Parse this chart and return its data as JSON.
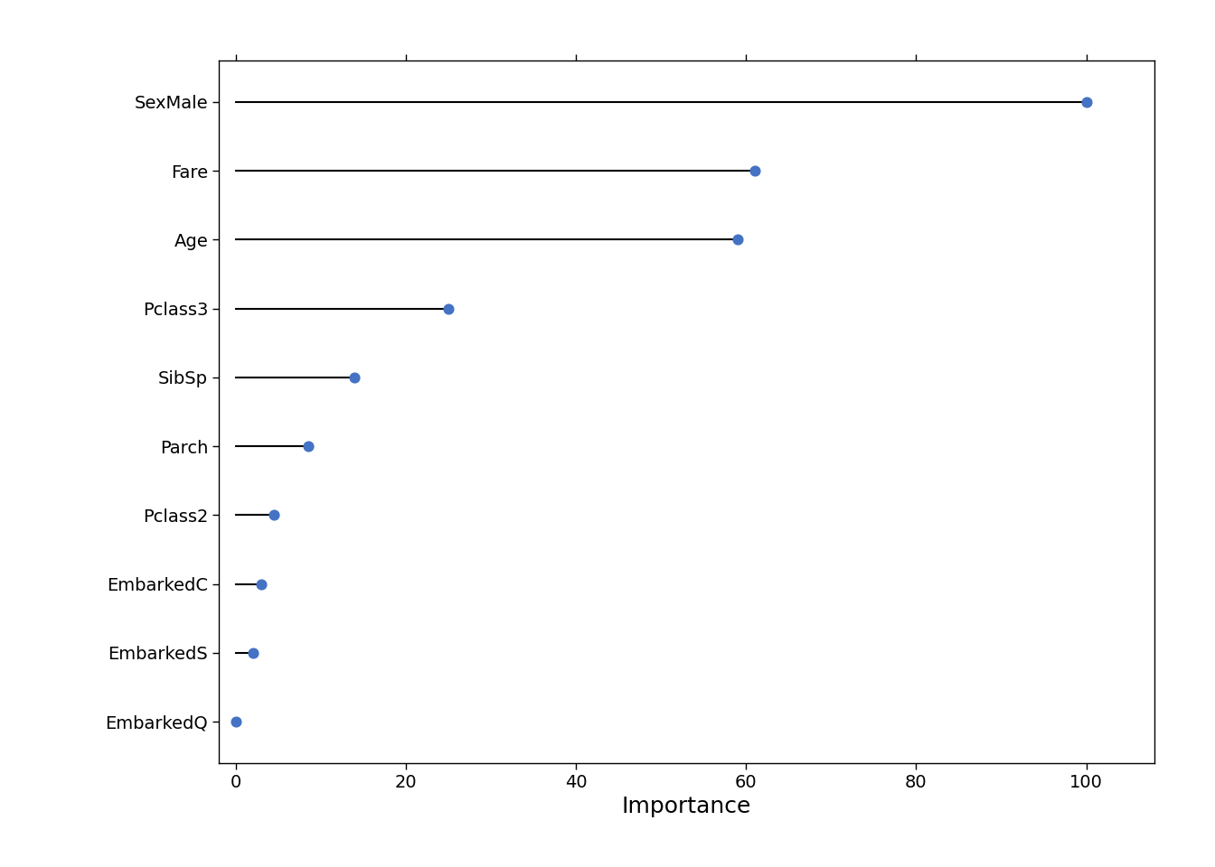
{
  "features": [
    "SexMale",
    "Fare",
    "Age",
    "Pclass3",
    "SibSp",
    "Parch",
    "Pclass2",
    "EmbarkedC",
    "EmbarkedS",
    "EmbarkedQ"
  ],
  "importance": [
    100.0,
    61.0,
    59.0,
    25.0,
    14.0,
    8.5,
    4.5,
    3.0,
    2.0,
    0.0
  ],
  "xlabel": "Importance",
  "xlim": [
    -2,
    108
  ],
  "xticks": [
    0,
    20,
    40,
    60,
    80,
    100
  ],
  "dot_color": "#4472C4",
  "dot_size": 60,
  "line_color": "black",
  "line_width": 1.5,
  "background_color": "#FFFFFF",
  "spine_color": "black",
  "xlabel_fontsize": 18,
  "tick_fontsize": 14
}
